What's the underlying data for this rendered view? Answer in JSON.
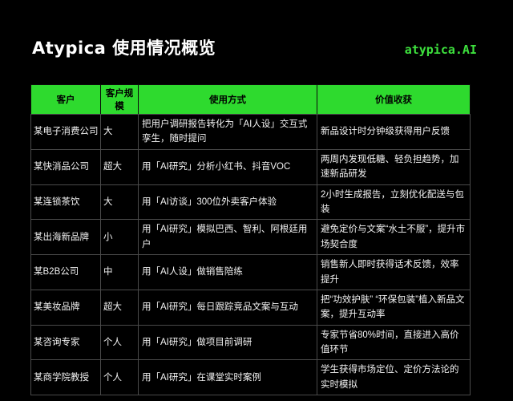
{
  "page": {
    "title": "Atypica 使用情况概览",
    "logo": "atypica.AI"
  },
  "colors": {
    "background": "#000000",
    "header_green": "#2eda2e",
    "logo_green": "#3de03d",
    "border_gray": "#4a4a4a",
    "body_text": "#f2f2f2",
    "header_text": "#000000"
  },
  "table": {
    "headers": [
      "客户",
      "客户规模",
      "使用方式",
      "价值收获"
    ],
    "rows": [
      {
        "client": "某电子消费公司",
        "scale": "大",
        "usage": "把用户调研报告转化为「AI人设」交互式孪生，随时提问",
        "value": "新品设计时分钟级获得用户反馈"
      },
      {
        "client": "某快消品公司",
        "scale": "超大",
        "usage": "用「AI研究」分析小红书、抖音VOC",
        "value": "两周内发现低糖、轻负担趋势，加速新品研发"
      },
      {
        "client": "某连锁茶饮",
        "scale": "大",
        "usage": "用「AI访谈」300位外卖客户体验",
        "value": "2小时生成报告，立刻优化配送与包装"
      },
      {
        "client": "某出海新品牌",
        "scale": "小",
        "usage": "用「AI研究」模拟巴西、智利、阿根廷用户",
        "value": "避免定价与文案“水土不服”，提升市场契合度"
      },
      {
        "client": "某B2B公司",
        "scale": "中",
        "usage": "用「AI人设」做销售陪练",
        "value": "销售新人即时获得话术反馈，效率提升"
      },
      {
        "client": "某美妆品牌",
        "scale": "超大",
        "usage": "用「AI研究」每日跟踪竞品文案与互动",
        "value": "把“功效护肤” “环保包装”植入新品文案，提升互动率"
      },
      {
        "client": "某咨询专家",
        "scale": "个人",
        "usage": "用「AI研究」做项目前调研",
        "value": "专家节省80%时间，直接进入高价值环节"
      },
      {
        "client": "某商学院教授",
        "scale": "个人",
        "usage": "用「AI研究」在课堂实时案例",
        "value": "学生获得市场定位、定价方法论的实时模拟"
      }
    ]
  }
}
